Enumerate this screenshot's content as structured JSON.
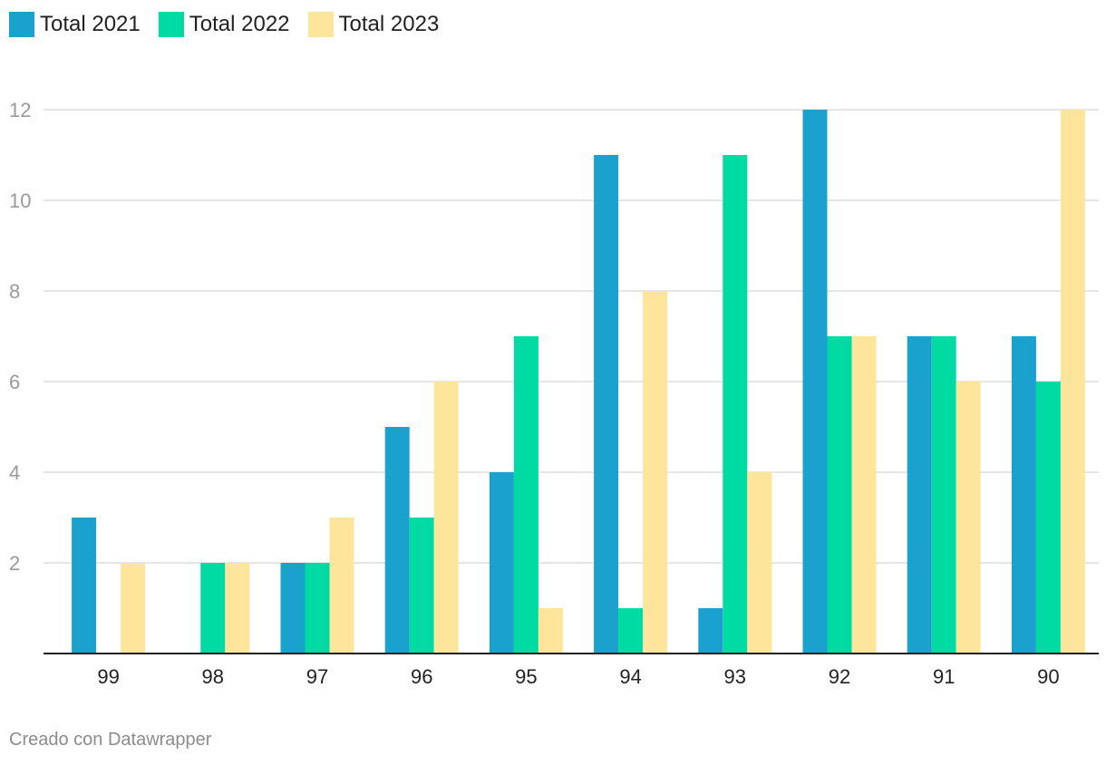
{
  "chart_data": {
    "type": "bar",
    "title": "",
    "xlabel": "",
    "ylabel": "",
    "categories": [
      "99",
      "98",
      "97",
      "96",
      "95",
      "94",
      "93",
      "92",
      "91",
      "90"
    ],
    "series": [
      {
        "name": "Total 2021",
        "color": "#1aa1ce",
        "values": [
          3,
          0,
          2,
          5,
          4,
          11,
          1,
          12,
          7,
          7
        ]
      },
      {
        "name": "Total 2022",
        "color": "#00dba3",
        "values": [
          0,
          2,
          2,
          3,
          7,
          1,
          11,
          7,
          7,
          6
        ]
      },
      {
        "name": "Total 2023",
        "color": "#fde59b",
        "values": [
          2,
          2,
          3,
          6,
          1,
          8,
          4,
          7,
          6,
          12
        ]
      }
    ],
    "yticks": [
      2,
      4,
      6,
      8,
      10,
      12
    ],
    "ylim": [
      0,
      12
    ],
    "grid": true,
    "legend": "top-left"
  },
  "footer": {
    "credit": "Creado con Datawrapper"
  }
}
